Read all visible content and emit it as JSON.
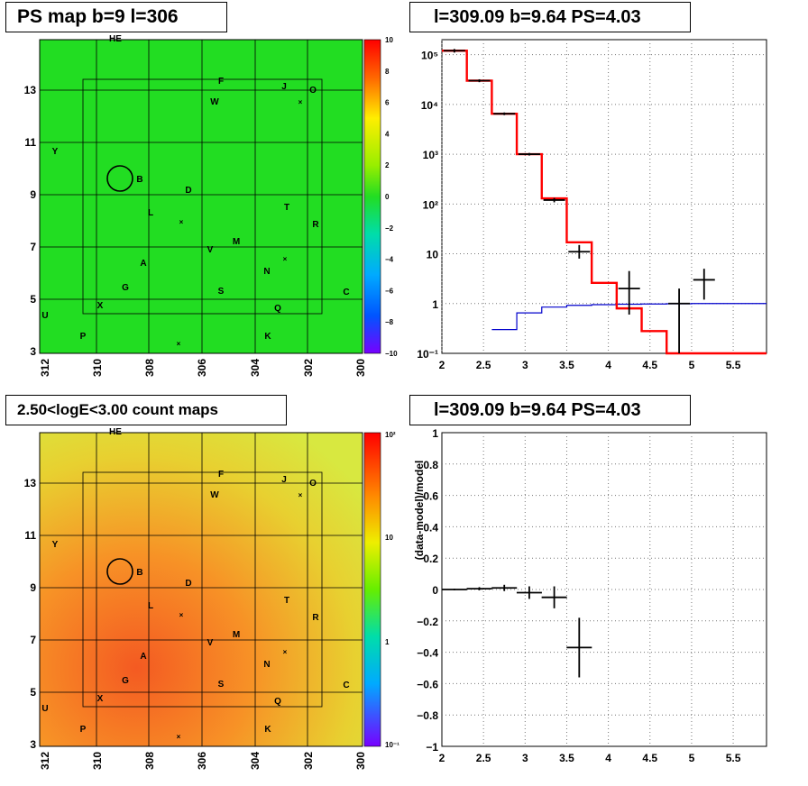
{
  "panels": {
    "ps_map": {
      "title": "PS map b=9 l=306"
    },
    "count_map": {
      "title": "2.50<logE<3.00 count maps"
    },
    "spectrum": {
      "title": "l=309.09 b=9.64 PS=4.03"
    },
    "residual": {
      "title": "l=309.09 b=9.64 PS=4.03"
    }
  },
  "colors": {
    "hist_red": "#ff0000",
    "hist_blue": "#0000cc",
    "data_black": "#000000",
    "map_green": "#22dd22"
  },
  "maps": {
    "xticks": [
      "312",
      "310",
      "308",
      "306",
      "304",
      "302",
      "300"
    ],
    "yticks": [
      "13",
      "11",
      "9",
      "7",
      "5",
      "3"
    ],
    "sources": [
      "HE",
      "F",
      "J",
      "O",
      "W",
      "Y",
      "B",
      "D",
      "L",
      "T",
      "R",
      "M",
      "V",
      "A",
      "N",
      "G",
      "S",
      "C",
      "X",
      "Q",
      "U",
      "P",
      "K"
    ],
    "ps_colorbar": [
      "10",
      "8",
      "6",
      "4",
      "2",
      "0",
      "−2",
      "−4",
      "−6",
      "−8",
      "−10"
    ],
    "count_colorbar": [
      "10²",
      "10",
      "1",
      "10⁻¹"
    ]
  },
  "chart_data": [
    {
      "type": "line",
      "title": "l=309.09 b=9.64 PS=4.03",
      "xlim": [
        2,
        5.9
      ],
      "ylim": [
        0.1,
        200000
      ],
      "yscale": "log",
      "grid": true,
      "xticks": [
        "2",
        "2.5",
        "3",
        "3.5",
        "4",
        "4.5",
        "5",
        "5.5"
      ],
      "yticks": [
        "10⁻¹",
        "1",
        "10",
        "10²",
        "10³",
        "10⁴",
        "10⁵"
      ],
      "series": [
        {
          "style": "step",
          "edges": [
            2.0,
            2.3,
            2.6,
            2.9,
            3.2,
            3.5,
            3.8,
            4.1,
            4.4,
            4.7,
            5.0,
            5.9
          ],
          "values": [
            120000,
            30000,
            6500,
            1000,
            130,
            17,
            2.6,
            0.8,
            0.28,
            0.1,
            0.1
          ]
        },
        {
          "style": "step",
          "edges": [
            2.6,
            2.9,
            3.2,
            3.5,
            3.8,
            4.1,
            4.4,
            4.7,
            5.0,
            5.3,
            5.9
          ],
          "values": [
            0.3,
            0.65,
            0.85,
            0.92,
            0.95,
            0.97,
            0.98,
            0.99,
            1.0,
            1.0
          ]
        },
        {
          "style": "errorbars",
          "points": [
            {
              "x": 2.15,
              "y": 120000,
              "lo": 110000,
              "hi": 130000
            },
            {
              "x": 2.45,
              "y": 30000,
              "lo": 28000,
              "hi": 32000
            },
            {
              "x": 2.75,
              "y": 6500,
              "lo": 6100,
              "hi": 6900
            },
            {
              "x": 3.05,
              "y": 1000,
              "lo": 940,
              "hi": 1060
            },
            {
              "x": 3.35,
              "y": 120,
              "lo": 108,
              "hi": 132
            },
            {
              "x": 3.65,
              "y": 11,
              "lo": 8,
              "hi": 15
            },
            {
              "x": 4.25,
              "y": 2,
              "lo": 0.6,
              "hi": 4.5
            },
            {
              "x": 4.85,
              "y": 1,
              "lo": 0.1,
              "hi": 2
            },
            {
              "x": 5.15,
              "y": 3,
              "lo": 1.2,
              "hi": 5
            }
          ]
        }
      ]
    },
    {
      "type": "scatter",
      "title": "l=309.09 b=9.64 PS=4.03",
      "ylabel": "(data-model)/model",
      "xlim": [
        2,
        5.9
      ],
      "ylim": [
        -1,
        1
      ],
      "grid": true,
      "xticks": [
        "2",
        "2.5",
        "3",
        "3.5",
        "4",
        "4.5",
        "5",
        "5.5"
      ],
      "yticks": [
        "1",
        "0.8",
        "0.6",
        "0.4",
        "0.2",
        "0",
        "−0.2",
        "−0.4",
        "−0.6",
        "−0.8",
        "−1"
      ],
      "points": [
        {
          "x": 2.15,
          "y": 0.0,
          "err": 0.005
        },
        {
          "x": 2.45,
          "y": 0.005,
          "err": 0.01
        },
        {
          "x": 2.75,
          "y": 0.01,
          "err": 0.02
        },
        {
          "x": 3.05,
          "y": -0.02,
          "err": 0.04
        },
        {
          "x": 3.35,
          "y": -0.05,
          "err": 0.07
        },
        {
          "x": 3.65,
          "y": -0.37,
          "err": 0.19
        }
      ]
    }
  ]
}
